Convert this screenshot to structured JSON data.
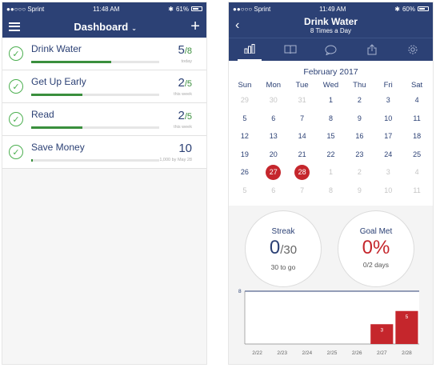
{
  "left": {
    "status": {
      "carrier": "●●○○○ Sprint",
      "time": "11:48 AM",
      "battery": "61%",
      "battery_fill": 0.61
    },
    "header": {
      "title": "Dashboard",
      "chevron": "⌄",
      "menu_icon": "hamburger-icon",
      "add_icon": "plus-icon"
    },
    "habits": [
      {
        "name": "Drink Water",
        "count": "5",
        "den": "/8",
        "sub": "today",
        "progress": 0.625,
        "count_color": "#2c4175"
      },
      {
        "name": "Get Up Early",
        "count": "2",
        "den": "/5",
        "sub": "this week",
        "progress": 0.4,
        "count_color": "#2c4175"
      },
      {
        "name": "Read",
        "count": "2",
        "den": "/5",
        "sub": "this week",
        "progress": 0.4,
        "count_color": "#2c4175"
      },
      {
        "name": "Save Money",
        "count": "10",
        "den": "",
        "sub": "1,000 by May 28",
        "progress": 0.01,
        "count_color": "#2c4175"
      }
    ]
  },
  "right": {
    "status": {
      "carrier": "●●○○○ Sprint",
      "time": "11:49 AM",
      "battery": "60%",
      "battery_fill": 0.6
    },
    "header": {
      "title": "Drink Water",
      "subtitle": "8 Times a Day",
      "back": "‹"
    },
    "toolbar_icons": [
      "chart-icon",
      "book-icon",
      "comment-icon",
      "share-icon",
      "settings-icon"
    ],
    "calendar": {
      "month": "February 2017",
      "dow": [
        "Sun",
        "Mon",
        "Tue",
        "Wed",
        "Thu",
        "Fri",
        "Sat"
      ],
      "days": [
        {
          "d": "29",
          "m": true
        },
        {
          "d": "30",
          "m": true
        },
        {
          "d": "31",
          "m": true
        },
        {
          "d": "1"
        },
        {
          "d": "2"
        },
        {
          "d": "3"
        },
        {
          "d": "4"
        },
        {
          "d": "5"
        },
        {
          "d": "6"
        },
        {
          "d": "7"
        },
        {
          "d": "8"
        },
        {
          "d": "9"
        },
        {
          "d": "10"
        },
        {
          "d": "11"
        },
        {
          "d": "12"
        },
        {
          "d": "13"
        },
        {
          "d": "14"
        },
        {
          "d": "15"
        },
        {
          "d": "16"
        },
        {
          "d": "17"
        },
        {
          "d": "18"
        },
        {
          "d": "19"
        },
        {
          "d": "20"
        },
        {
          "d": "21"
        },
        {
          "d": "22"
        },
        {
          "d": "23"
        },
        {
          "d": "24"
        },
        {
          "d": "25"
        },
        {
          "d": "26"
        },
        {
          "d": "27",
          "h": true
        },
        {
          "d": "28",
          "h": true
        },
        {
          "d": "1",
          "m": true
        },
        {
          "d": "2",
          "m": true
        },
        {
          "d": "3",
          "m": true
        },
        {
          "d": "4",
          "m": true
        },
        {
          "d": "5",
          "m": true
        },
        {
          "d": "6",
          "m": true
        },
        {
          "d": "7",
          "m": true
        },
        {
          "d": "8",
          "m": true
        },
        {
          "d": "9",
          "m": true
        },
        {
          "d": "10",
          "m": true
        },
        {
          "d": "11",
          "m": true
        }
      ]
    },
    "streak": {
      "label": "Streak",
      "value": "0",
      "den": "/30",
      "sub": "30 to go"
    },
    "goal": {
      "label": "Goal Met",
      "value": "0%",
      "sub": "0/2 days"
    }
  },
  "chart_data": {
    "type": "bar",
    "categories": [
      "2/22",
      "2/23",
      "2/24",
      "2/25",
      "2/26",
      "2/27",
      "2/28"
    ],
    "values": [
      0,
      0,
      0,
      0,
      0,
      3,
      5
    ],
    "goal_line": 8,
    "ylim": [
      0,
      8
    ],
    "bar_color": "#c5262c",
    "line_color": "#2c4175"
  }
}
